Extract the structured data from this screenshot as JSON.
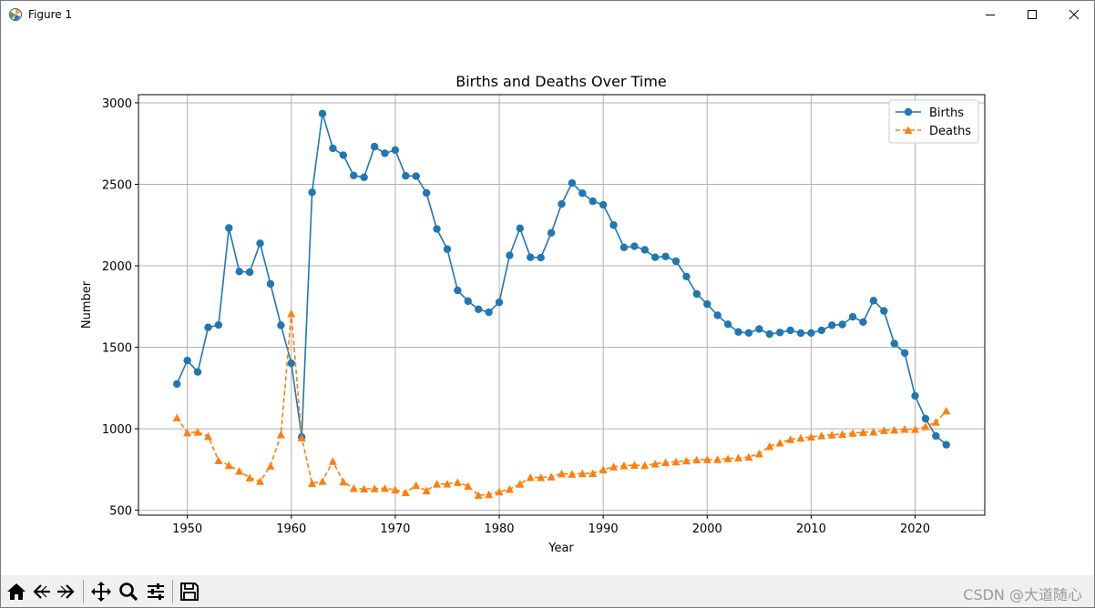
{
  "window": {
    "title": "Figure 1"
  },
  "watermark": "CSDN @大道随心",
  "toolbar": {
    "tools": [
      "home-icon",
      "back-arrow-icon",
      "forward-arrow-icon",
      "pan-icon",
      "zoom-icon",
      "configure-subplots-icon",
      "save-icon"
    ]
  },
  "colors": {
    "births": "#1f77b4",
    "deaths": "#ff7f0e",
    "grid": "#b0b0b0"
  },
  "chart_data": {
    "type": "line",
    "title": "Births and Deaths Over Time",
    "xlabel": "Year",
    "ylabel": "Number",
    "xlim": [
      1945.3,
      2026.7
    ],
    "ylim": [
      470,
      3050
    ],
    "xticks": [
      1950,
      1960,
      1970,
      1980,
      1990,
      2000,
      2010,
      2020
    ],
    "yticks": [
      500,
      1000,
      1500,
      2000,
      2500,
      3000
    ],
    "grid": true,
    "legend_position": "top-right",
    "x": [
      1949,
      1950,
      1951,
      1952,
      1953,
      1954,
      1955,
      1956,
      1957,
      1958,
      1959,
      1960,
      1961,
      1962,
      1963,
      1964,
      1965,
      1966,
      1967,
      1968,
      1969,
      1970,
      1971,
      1972,
      1973,
      1974,
      1975,
      1976,
      1977,
      1978,
      1979,
      1980,
      1981,
      1982,
      1983,
      1984,
      1985,
      1986,
      1987,
      1988,
      1989,
      1990,
      1991,
      1992,
      1993,
      1994,
      1995,
      1996,
      1997,
      1998,
      1999,
      2000,
      2001,
      2002,
      2003,
      2004,
      2005,
      2006,
      2007,
      2008,
      2009,
      2010,
      2011,
      2012,
      2013,
      2014,
      2015,
      2016,
      2017,
      2018,
      2019,
      2020,
      2021,
      2022,
      2023
    ],
    "series": [
      {
        "name": "Births",
        "style": "solid",
        "marker": "circle",
        "values": [
          1275,
          1419,
          1349,
          1622,
          1637,
          2232,
          1965,
          1961,
          2138,
          1889,
          1635,
          1402,
          949,
          2451,
          2934,
          2721,
          2679,
          2554,
          2543,
          2731,
          2690,
          2710,
          2552,
          2550,
          2447,
          2226,
          2102,
          1849,
          1783,
          1733,
          1715,
          1776,
          2064,
          2230,
          2052,
          2050,
          2202,
          2379,
          2508,
          2445,
          2396,
          2374,
          2250,
          2113,
          2120,
          2098,
          2052,
          2057,
          2028,
          1934,
          1827,
          1765,
          1696,
          1641,
          1594,
          1588,
          1612,
          1581,
          1591,
          1604,
          1587,
          1588,
          1604,
          1635,
          1640,
          1687,
          1655,
          1786,
          1723,
          1523,
          1465,
          1202,
          1062,
          956,
          902
        ]
      },
      {
        "name": "Deaths",
        "style": "dashed",
        "marker": "triangle",
        "values": [
          1068,
          976,
          980,
          954,
          805,
          776,
          740,
          700,
          678,
          772,
          965,
          1707,
          945,
          665,
          678,
          801,
          675,
          635,
          631,
          633,
          635,
          626,
          609,
          653,
          620,
          661,
          662,
          672,
          648,
          593,
          597,
          614,
          629,
          661,
          702,
          701,
          705,
          725,
          722,
          726,
          727,
          749,
          767,
          774,
          777,
          775,
          785,
          794,
          798,
          804,
          810,
          811,
          812,
          817,
          822,
          827,
          847,
          892,
          913,
          935,
          943,
          950,
          958,
          963,
          967,
          973,
          979,
          981,
          990,
          993,
          998,
          997,
          1014,
          1041,
          1110
        ]
      }
    ]
  }
}
